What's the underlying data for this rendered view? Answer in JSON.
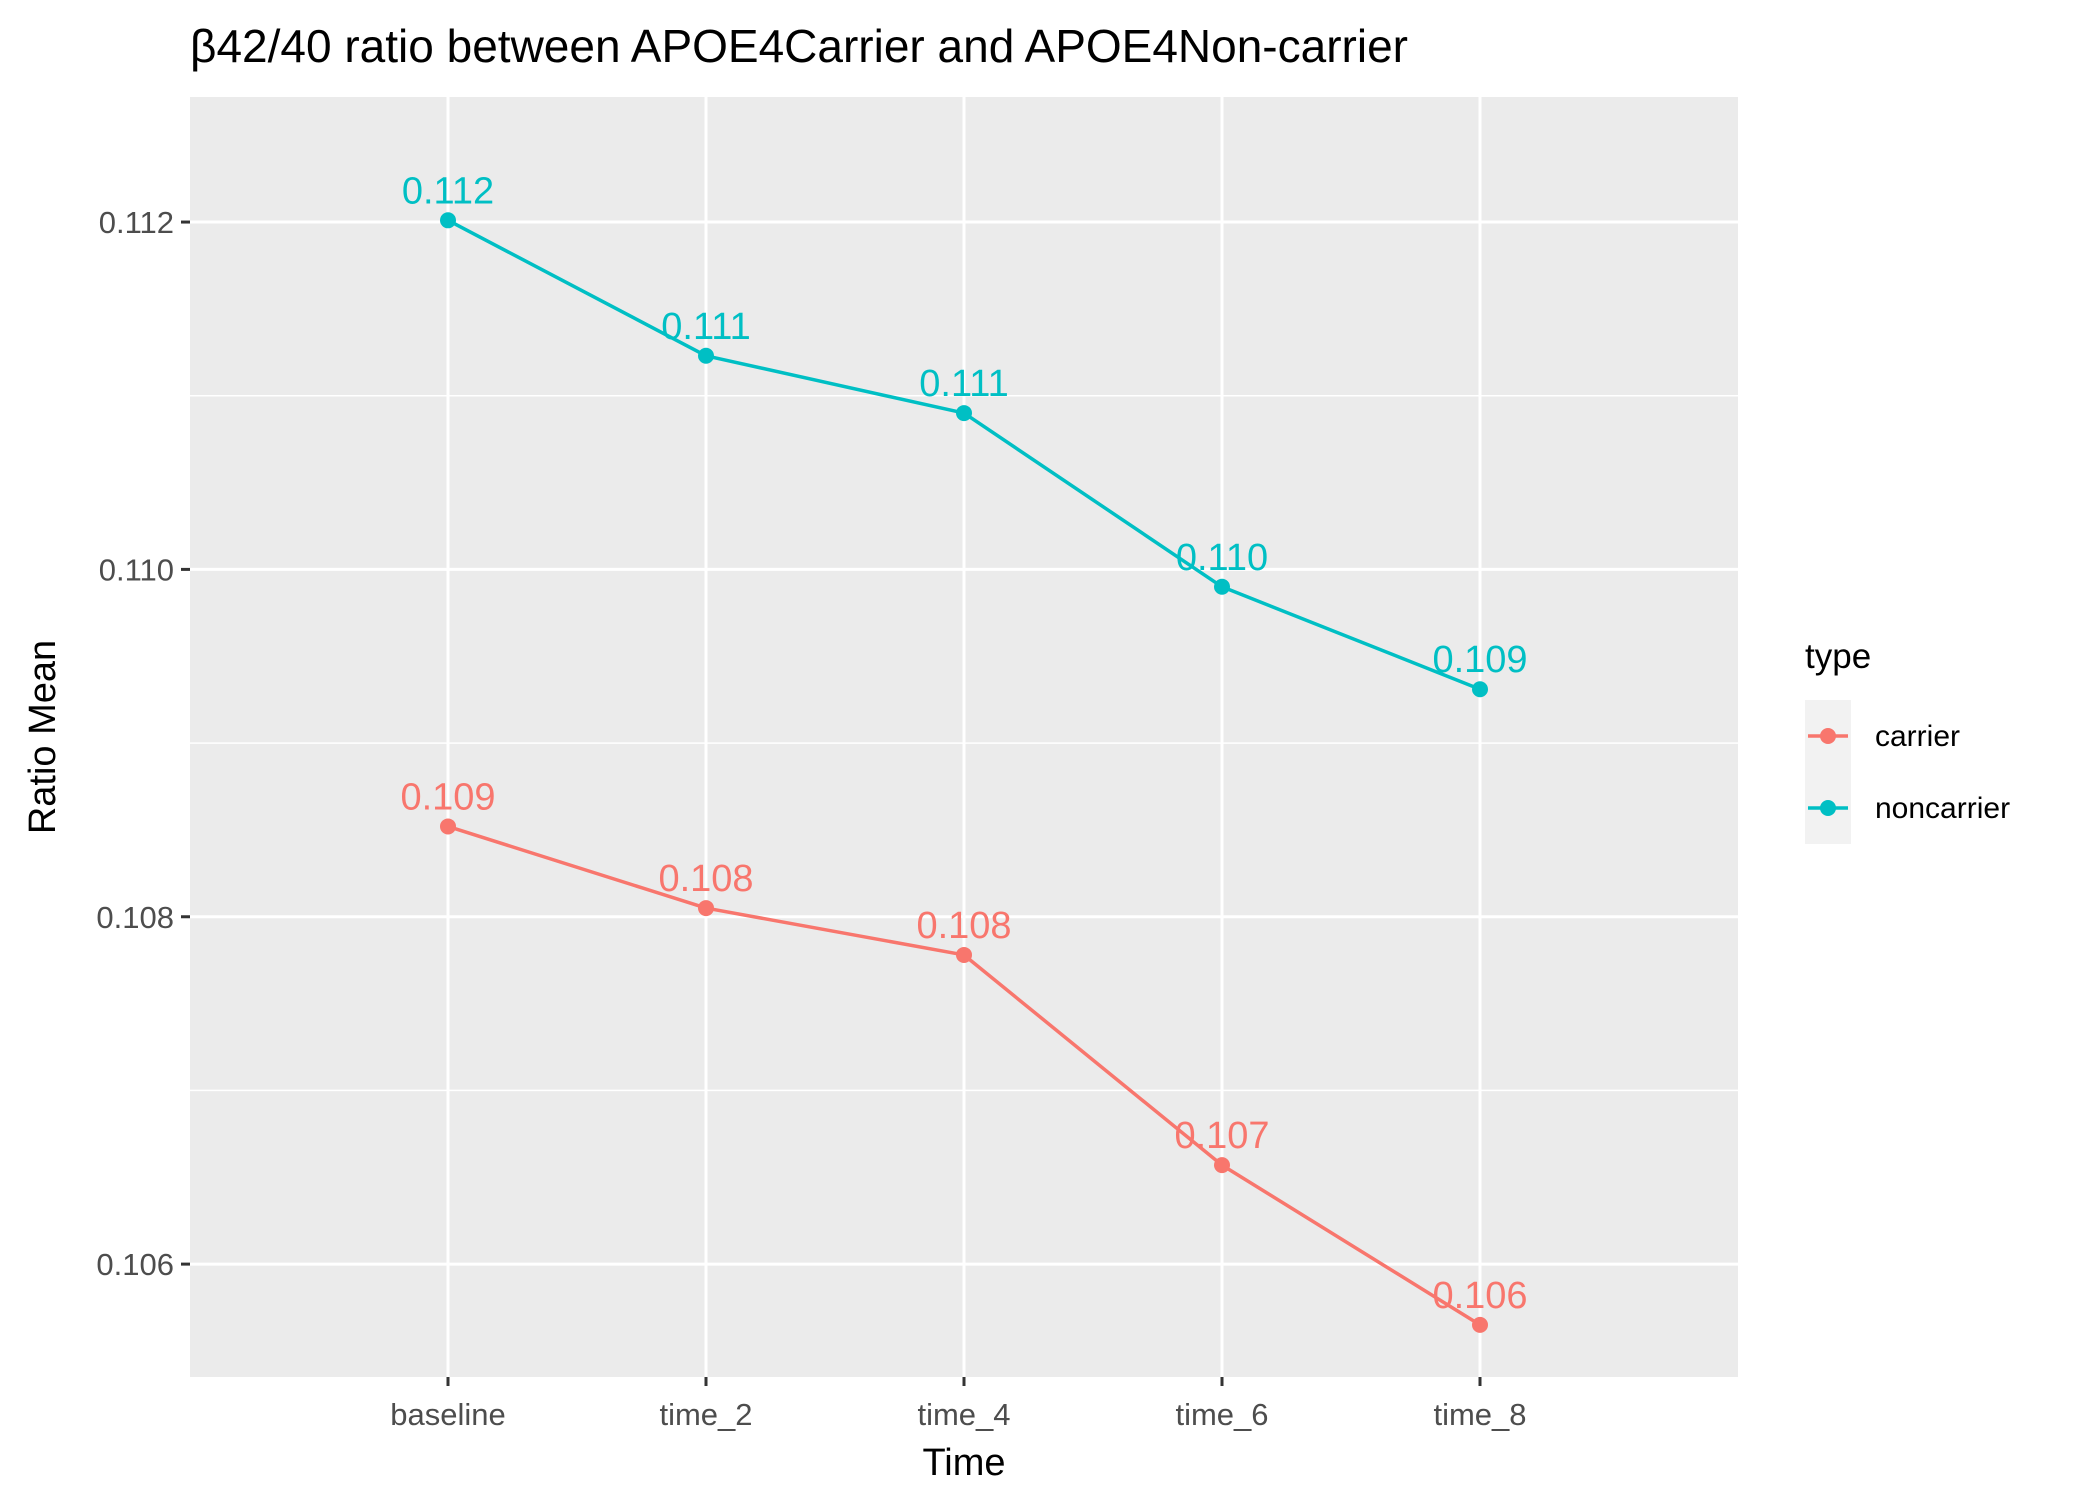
{
  "chart_data": {
    "type": "line",
    "title": "β42/40 ratio between APOE4Carrier and APOE4Non-carrier",
    "xlabel": "Time",
    "ylabel": "Ratio Mean",
    "categories": [
      "baseline",
      "time_2",
      "time_4",
      "time_6",
      "time_8"
    ],
    "ylim": [
      0.10535,
      0.11272
    ],
    "yticks": [
      "0.106",
      "0.108",
      "0.110",
      "0.112"
    ],
    "ytick_values": [
      0.106,
      0.108,
      0.11,
      0.112
    ],
    "grid": true,
    "legend": {
      "title": "type",
      "position": "right"
    },
    "series": [
      {
        "name": "carrier",
        "color": "#F8766D",
        "values": [
          0.10852,
          0.10805,
          0.10778,
          0.10657,
          0.10565
        ],
        "labels": [
          "0.109",
          "0.108",
          "0.108",
          "0.107",
          "0.106"
        ]
      },
      {
        "name": "noncarrier",
        "color": "#00BFC4",
        "values": [
          0.11201,
          0.11123,
          0.1109,
          0.1099,
          0.10931
        ],
        "labels": [
          "0.112",
          "0.111",
          "0.111",
          "0.110",
          "0.109"
        ]
      }
    ]
  }
}
